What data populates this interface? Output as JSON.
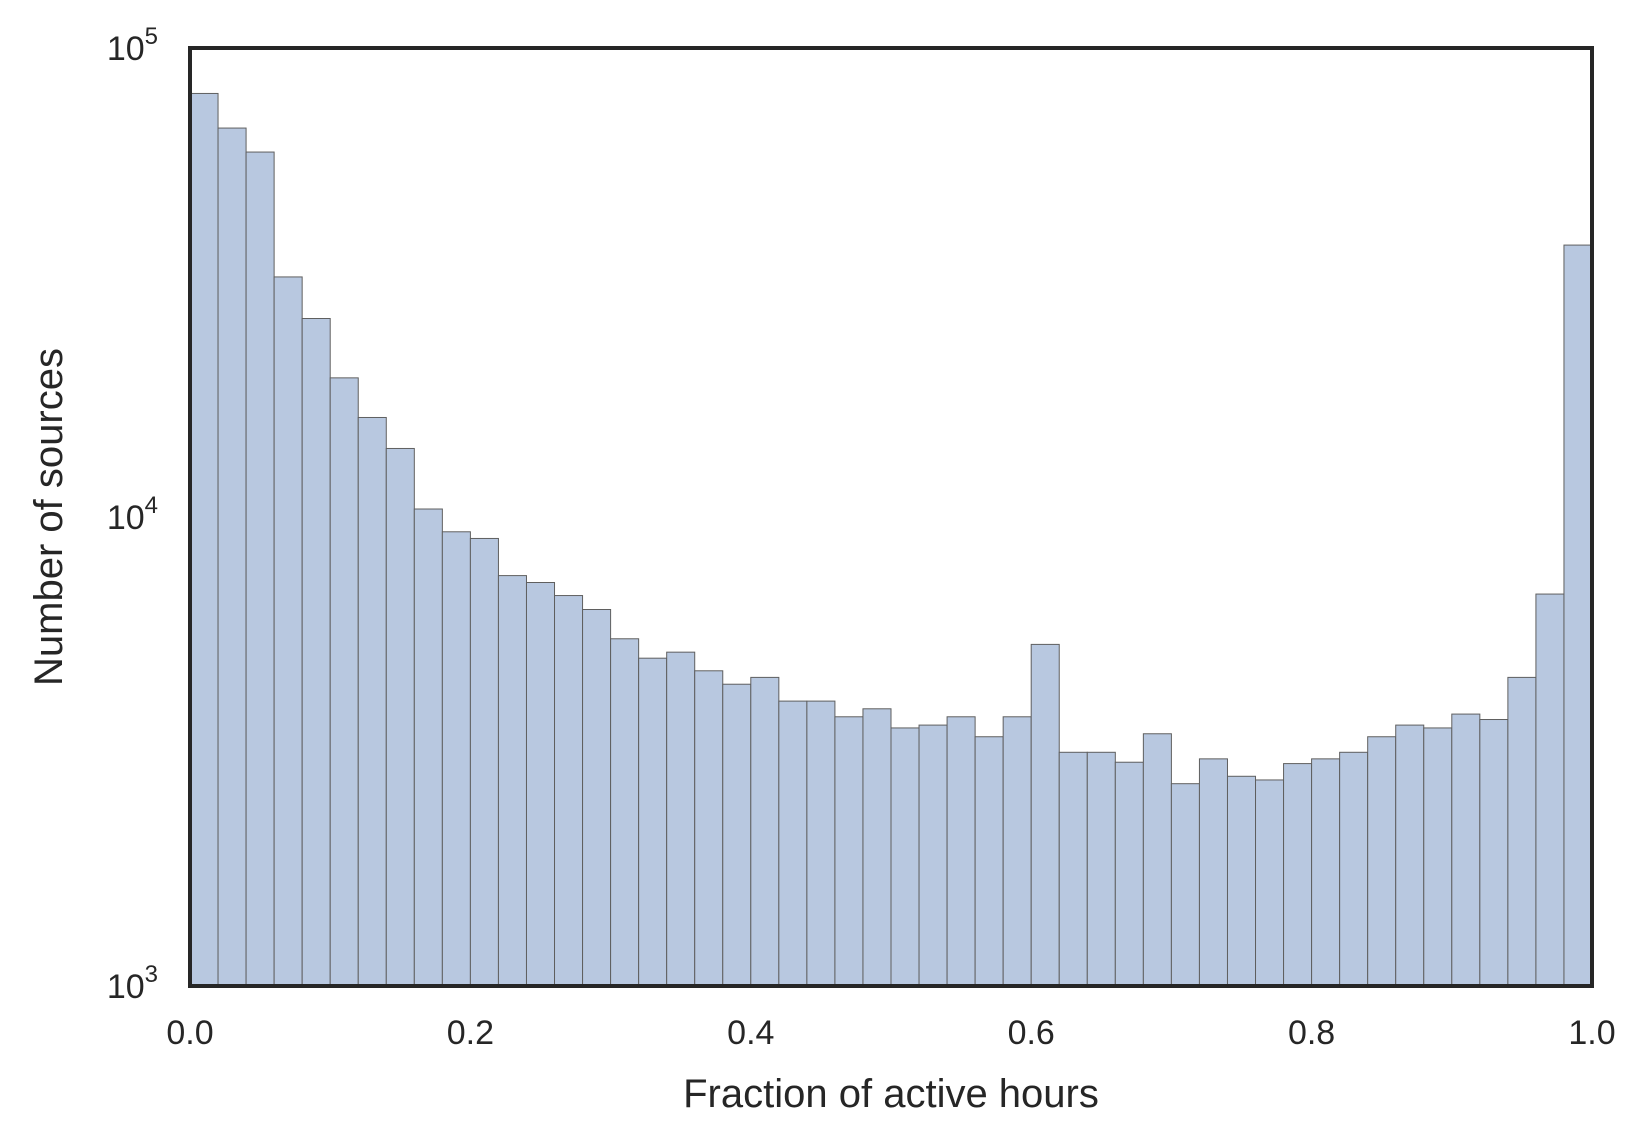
{
  "chart_data": {
    "type": "bar",
    "xlabel": "Fraction of active hours",
    "ylabel": "Number of sources",
    "xlim": [
      0.0,
      1.0
    ],
    "ylim": [
      1000,
      100000
    ],
    "yscale": "log",
    "grid": false,
    "bar_color": "#b8c8e0",
    "x_ticks": [
      "0.0",
      "0.2",
      "0.4",
      "0.6",
      "0.8",
      "1.0"
    ],
    "x_tick_values": [
      0.0,
      0.2,
      0.4,
      0.6,
      0.8,
      1.0
    ],
    "y_ticks": [
      {
        "value": 100000,
        "base": "10",
        "exp": "5"
      },
      {
        "value": 10000,
        "base": "10",
        "exp": "4"
      },
      {
        "value": 1000,
        "base": "10",
        "exp": "3"
      }
    ],
    "bin_edges_start": 0.0,
    "bin_width": 0.02,
    "values": [
      80000,
      67500,
      60000,
      32500,
      26500,
      19800,
      16300,
      14000,
      10400,
      9300,
      9000,
      7500,
      7250,
      6800,
      6350,
      5500,
      5000,
      5150,
      4700,
      4400,
      4550,
      4050,
      4050,
      3750,
      3900,
      3550,
      3600,
      3750,
      3400,
      3750,
      5350,
      3150,
      3150,
      3000,
      3450,
      2700,
      3050,
      2800,
      2750,
      2980,
      3050,
      3150,
      3400,
      3600,
      3550,
      3800,
      3700,
      4550,
      6850,
      38000
    ]
  }
}
